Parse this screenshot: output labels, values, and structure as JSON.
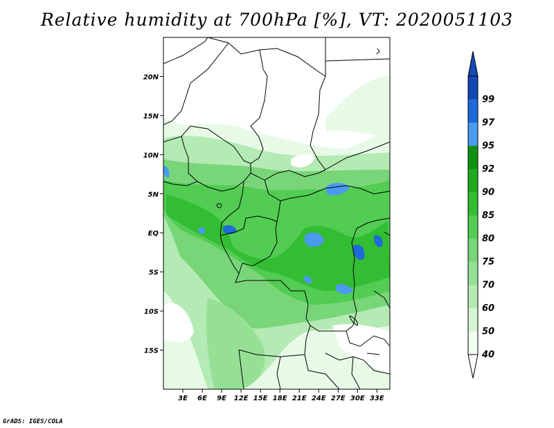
{
  "title": "Relative humidity at 700hPa [%], VT: 2020051103",
  "credit": "GrADS: IGES/COLA",
  "map": {
    "variable": "Relative humidity",
    "level": "700hPa",
    "units": "%",
    "valid_time": "2020051103",
    "lon_range": [
      0,
      35
    ],
    "lat_range": [
      -20,
      25
    ],
    "lon_ticks": [
      "3E",
      "6E",
      "9E",
      "12E",
      "15E",
      "18E",
      "21E",
      "24E",
      "27E",
      "30E",
      "33E"
    ],
    "lat_ticks": [
      "20N",
      "15N",
      "10N",
      "5N",
      "EQ",
      "5S",
      "10S",
      "15S"
    ]
  },
  "colorbar": {
    "levels": [
      "40",
      "50",
      "60",
      "70",
      "75",
      "80",
      "85",
      "90",
      "92",
      "95",
      "97",
      "99"
    ],
    "colors": [
      "#f0fff0",
      "#d6f5d6",
      "#b4eab4",
      "#96e096",
      "#78d678",
      "#52cc52",
      "#32bd32",
      "#1eaa1e",
      "#109010",
      "#4a9af0",
      "#1e6ad8",
      "#1448b4"
    ],
    "low_tip_color": "#ffffff",
    "high_tip_color": "#1448b4"
  }
}
